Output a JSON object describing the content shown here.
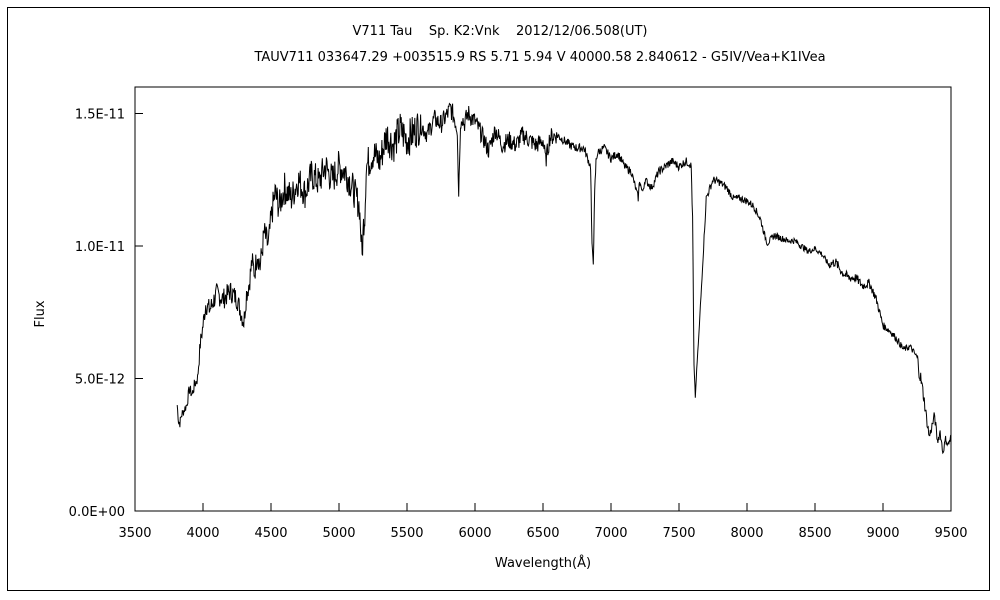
{
  "chart_data": {
    "type": "line",
    "title": "V711 Tau    Sp. K2:Vnk    2012/12/06.508(UT)",
    "subtitle": "TAUV711 033647.29 +003515.9 RS 5.71 5.94 V 40000.58 2.840612 - G5IV/Vea+K1IVea",
    "xlabel": "Wavelength(Å)",
    "ylabel": "Flux",
    "xlim": [
      3500,
      9500
    ],
    "ylim": [
      0,
      1.6e-11
    ],
    "x_ticks": [
      3500,
      4000,
      4500,
      5000,
      5500,
      6000,
      6500,
      7000,
      7500,
      8000,
      8500,
      9000,
      9500
    ],
    "x_tick_labels": [
      "3500",
      "4000",
      "4500",
      "5000",
      "5500",
      "6000",
      "6500",
      "7000",
      "7500",
      "8000",
      "8500",
      "9000",
      "9500"
    ],
    "y_ticks": [
      0,
      5e-12,
      1e-11,
      1.5e-11
    ],
    "y_tick_labels": [
      "0.0E+00",
      "5.0E-12",
      "1.0E-11",
      "1.5E-11"
    ],
    "grid": false,
    "line_color": "#000000",
    "series": [
      {
        "x": [
          3810,
          3820,
          3830,
          3840,
          3860,
          3880,
          3900,
          3920,
          3940,
          3960,
          3980,
          4000,
          4020,
          4050,
          4100,
          4150,
          4200,
          4250,
          4300,
          4320,
          4340,
          4360,
          4380,
          4400,
          4420,
          4450,
          4480,
          4500,
          4530,
          4560,
          4600,
          4650,
          4700,
          4750,
          4800,
          4850,
          4900,
          4950,
          5000,
          5050,
          5100,
          5150,
          5170,
          5180,
          5190,
          5200,
          5250,
          5300,
          5350,
          5400,
          5450,
          5500,
          5550,
          5600,
          5650,
          5700,
          5750,
          5800,
          5820,
          5850,
          5870,
          5880,
          5890,
          5900,
          5920,
          5950,
          6000,
          6050,
          6100,
          6150,
          6200,
          6250,
          6300,
          6350,
          6400,
          6450,
          6500,
          6520,
          6550,
          6600,
          6650,
          6700,
          6750,
          6800,
          6850,
          6860,
          6870,
          6880,
          6890,
          6900,
          6920,
          6950,
          7000,
          7050,
          7100,
          7150,
          7180,
          7200,
          7210,
          7230,
          7250,
          7300,
          7350,
          7400,
          7450,
          7500,
          7550,
          7580,
          7590,
          7600,
          7610,
          7620,
          7630,
          7650,
          7700,
          7750,
          7800,
          7850,
          7900,
          7950,
          8000,
          8050,
          8100,
          8130,
          8150,
          8200,
          8250,
          8300,
          8350,
          8400,
          8450,
          8500,
          8550,
          8600,
          8650,
          8700,
          8750,
          8800,
          8850,
          8900,
          8950,
          9000,
          9050,
          9100,
          9150,
          9200,
          9250,
          9300,
          9320,
          9340,
          9360,
          9380,
          9400,
          9420,
          9440,
          9460,
          9480,
          9500
        ],
        "y": [
          4e-12,
          3.4e-12,
          3.3e-12,
          3.6e-12,
          3.8e-12,
          4e-12,
          4.6e-12,
          4.4e-12,
          4.8e-12,
          5e-12,
          6.3e-12,
          7e-12,
          7.8e-12,
          7.6e-12,
          8.2e-12,
          8e-12,
          8.3e-12,
          8e-12,
          7.1e-12,
          8.2e-12,
          8.6e-12,
          9.4e-12,
          9e-12,
          9.8e-12,
          9.2e-12,
          1.05e-11,
          1e-11,
          1.1e-11,
          1.2e-11,
          1.15e-11,
          1.22e-11,
          1.18e-11,
          1.25e-11,
          1.2e-11,
          1.27e-11,
          1.24e-11,
          1.3e-11,
          1.25e-11,
          1.3e-11,
          1.28e-11,
          1.22e-11,
          1.15e-11,
          9.6e-12,
          1.08e-11,
          1.12e-11,
          1.3e-11,
          1.35e-11,
          1.32e-11,
          1.42e-11,
          1.38e-11,
          1.44e-11,
          1.4e-11,
          1.43e-11,
          1.46e-11,
          1.42e-11,
          1.48e-11,
          1.46e-11,
          1.5e-11,
          1.52e-11,
          1.48e-11,
          1.44e-11,
          1.2e-11,
          1.4e-11,
          1.5e-11,
          1.46e-11,
          1.5e-11,
          1.47e-11,
          1.42e-11,
          1.36e-11,
          1.44e-11,
          1.38e-11,
          1.4e-11,
          1.38e-11,
          1.42e-11,
          1.4e-11,
          1.38e-11,
          1.4e-11,
          1.32e-11,
          1.41e-11,
          1.42e-11,
          1.4e-11,
          1.38e-11,
          1.37e-11,
          1.37e-11,
          1.3e-11,
          1e-11,
          9.4e-12,
          1.2e-11,
          1.32e-11,
          1.35e-11,
          1.36e-11,
          1.37e-11,
          1.33e-11,
          1.35e-11,
          1.3e-11,
          1.28e-11,
          1.22e-11,
          1.18e-11,
          1.25e-11,
          1.2e-11,
          1.25e-11,
          1.22e-11,
          1.28e-11,
          1.3e-11,
          1.32e-11,
          1.3e-11,
          1.32e-11,
          1.31e-11,
          1.3e-11,
          1.1e-11,
          5.5e-12,
          4.3e-12,
          5.3e-12,
          7e-12,
          1.18e-11,
          1.25e-11,
          1.24e-11,
          1.22e-11,
          1.18e-11,
          1.18e-11,
          1.17e-11,
          1.15e-11,
          1.1e-11,
          1.04e-11,
          1.01e-11,
          1.04e-11,
          1.03e-11,
          1.02e-11,
          1.02e-11,
          1e-11,
          9.8e-12,
          9.9e-12,
          9.7e-12,
          9.3e-12,
          9.4e-12,
          9e-12,
          8.8e-12,
          8.8e-12,
          8.5e-12,
          8.6e-12,
          8e-12,
          7e-12,
          6.8e-12,
          6.5e-12,
          6.1e-12,
          6.2e-12,
          5.8e-12,
          4.3e-12,
          3.5e-12,
          2.8e-12,
          3.2e-12,
          3.6e-12,
          2.6e-12,
          3e-12,
          2.2e-12,
          2.7e-12,
          2.5e-12,
          2.8e-12
        ]
      }
    ]
  }
}
